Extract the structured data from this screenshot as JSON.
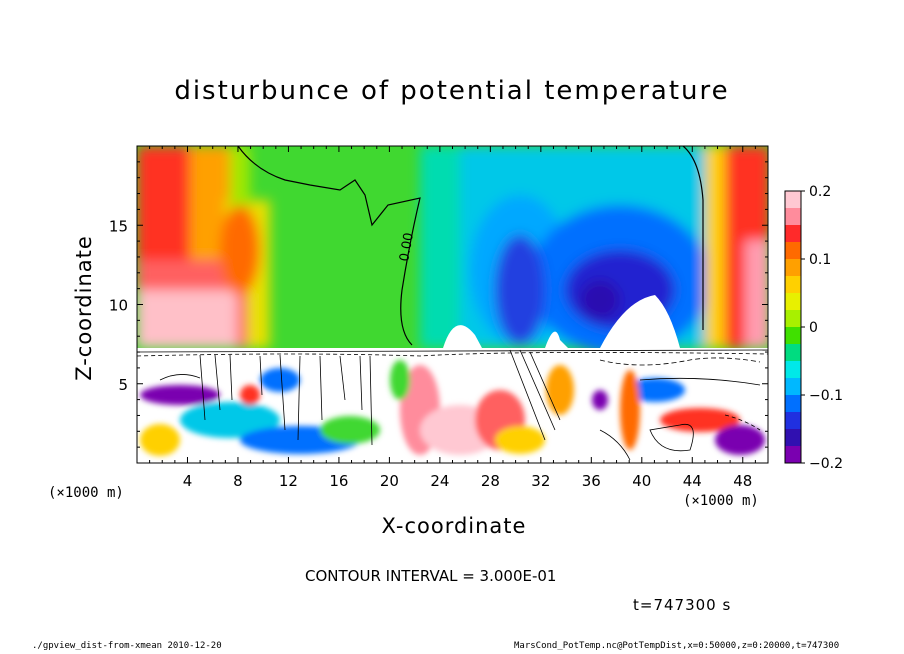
{
  "chart_data": {
    "type": "heatmap",
    "title": "disturbunce of potential temperature",
    "xlabel": "X-coordinate",
    "ylabel": "Z-coordinate",
    "x_unit": "(×1000 m)",
    "x_ticks": [
      4,
      8,
      12,
      16,
      20,
      24,
      28,
      32,
      36,
      40,
      44,
      48
    ],
    "y_ticks": [
      5,
      10,
      15
    ],
    "xlim": [
      0,
      50
    ],
    "ylim": [
      0,
      20
    ],
    "colorbar": {
      "range": [
        -0.2,
        0.2
      ],
      "tick_values": [
        0.2,
        0.1,
        0,
        -0.1,
        -0.2
      ],
      "tick_labels": [
        "0.2",
        "0.1",
        "0",
        "−0.1",
        "−0.2"
      ],
      "colors": [
        "#ffc8d2",
        "#ff8c9c",
        "#ff2a2a",
        "#ff6a00",
        "#ffa000",
        "#ffd000",
        "#e8f000",
        "#a8f000",
        "#40e000",
        "#00dc80",
        "#00e8e8",
        "#00b8ff",
        "#0070ff",
        "#2030e0",
        "#3010b0",
        "#7a00b0"
      ]
    },
    "contour_labels": [
      "0.00"
    ],
    "contour_interval": "CONTOUR INTERVAL = 3.000E-01",
    "time": "t=747300 s"
  },
  "footer": {
    "left": "./gpview_dist-from-xmean  2010-12-20",
    "right": "MarsCond_PotTemp.nc@PotTempDist,x=0:50000,z=0:20000,t=747300"
  }
}
